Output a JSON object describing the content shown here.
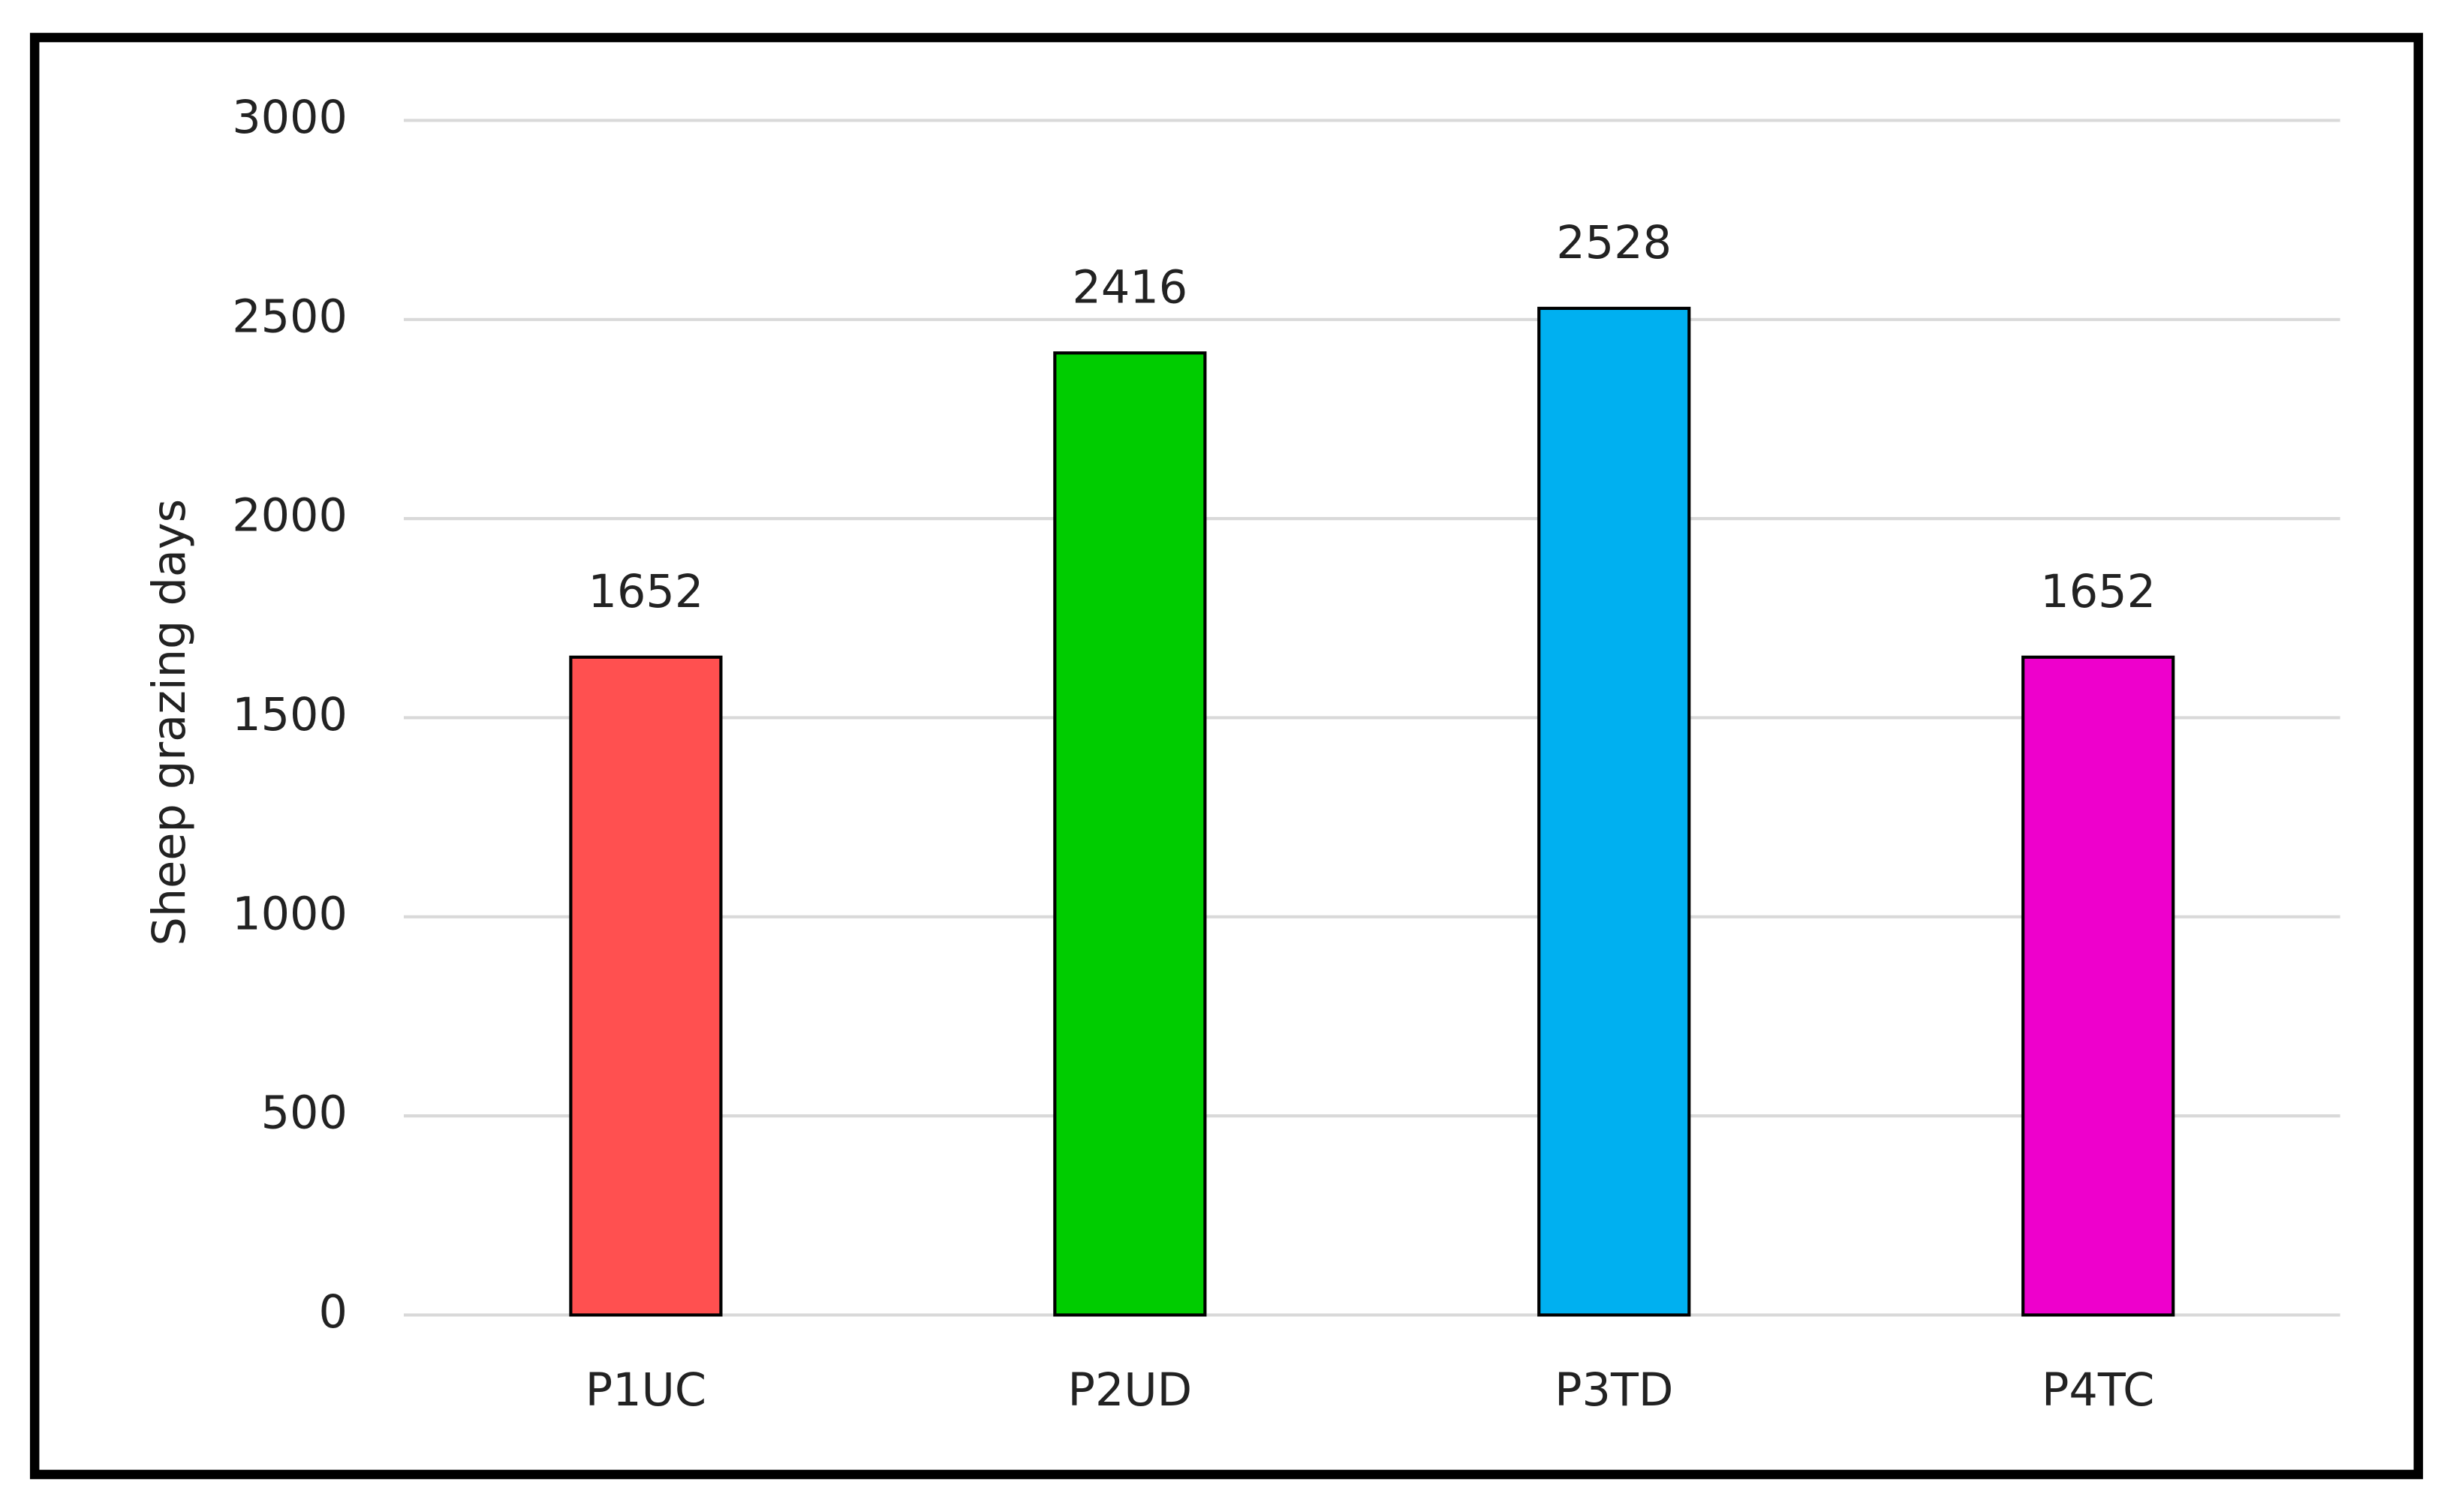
{
  "chart_data": {
    "type": "bar",
    "y_label": "Sheep grazing days",
    "categories": [
      "P1UC",
      "P2UD",
      "P3TD",
      "P4TC"
    ],
    "values": [
      1652,
      2416,
      2528,
      1652
    ],
    "colors": [
      "#ff5050",
      "#00cc00",
      "#00b0f0",
      "#ee00cc"
    ],
    "ylim": [
      0,
      3000
    ],
    "yticks": [
      0,
      500,
      1000,
      1500,
      2000,
      2500,
      3000
    ],
    "grid": true
  }
}
